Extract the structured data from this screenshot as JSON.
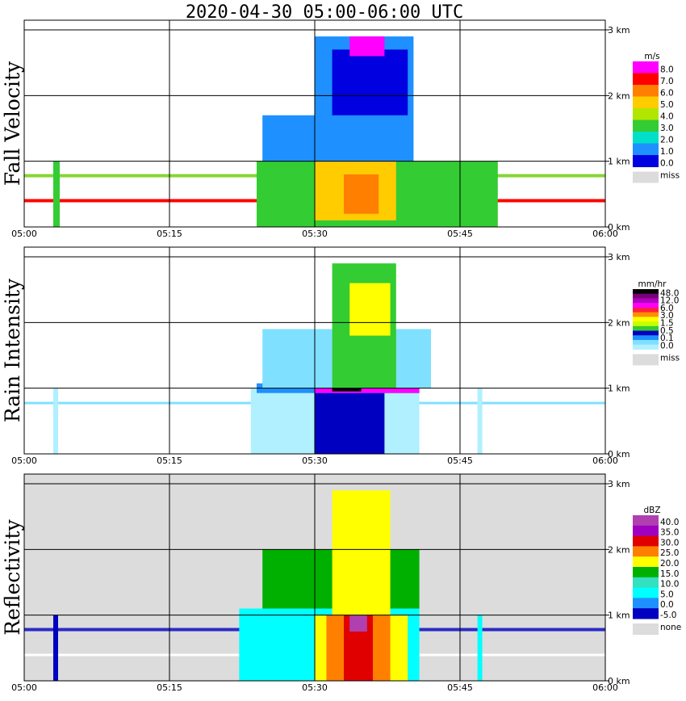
{
  "title": "2020-04-30   05:00-06:00 UTC",
  "chart_data": [
    {
      "type": "heatmap",
      "ylabel": "Fall Velocity",
      "x_ticks": [
        "05:00",
        "05:15",
        "05:30",
        "05:45",
        "06:00"
      ],
      "x_range": [
        "05:00",
        "06:00"
      ],
      "y_ticks": [
        "0 km",
        "1 km",
        "2 km",
        "3 km"
      ],
      "y_range_km": [
        0,
        3.1
      ],
      "grid": true,
      "legend": {
        "unit": "m/s",
        "levels": [
          "8.0",
          "7.0",
          "6.0",
          "5.0",
          "4.0",
          "3.0",
          "2.0",
          "1.0",
          "0.0"
        ],
        "colors": [
          "#ff00ff",
          "#ff0000",
          "#ff7f00",
          "#ffcc00",
          "#b2e600",
          "#33cc33",
          "#00e0c8",
          "#1e90ff",
          "#0000e0"
        ],
        "missing_label": "miss",
        "missing_color": "#dcdcdc"
      }
    },
    {
      "type": "heatmap",
      "ylabel": "Rain Intensity",
      "x_ticks": [
        "05:00",
        "05:15",
        "05:30",
        "05:45",
        "06:00"
      ],
      "x_range": [
        "05:00",
        "06:00"
      ],
      "y_ticks": [
        "0 km",
        "1 km",
        "2 km",
        "3 km"
      ],
      "y_range_km": [
        0,
        3.1
      ],
      "grid": true,
      "legend": {
        "unit": "mm/hr",
        "levels": [
          "48.0",
          "12.0",
          "6.0",
          "3.0",
          "1.5",
          "0.5",
          "0.1",
          "0.0"
        ],
        "colors": [
          "#000000",
          "#7a007a",
          "#b000c0",
          "#ff00ff",
          "#ff2040",
          "#ff9000",
          "#ffff00",
          "#c8ff00",
          "#33cc33",
          "#0000c0",
          "#1e90ff",
          "#80e0ff",
          "#b0f0ff"
        ],
        "missing_label": "miss",
        "missing_color": "#dcdcdc"
      }
    },
    {
      "type": "heatmap",
      "ylabel": "Reflectivity",
      "x_ticks": [
        "05:00",
        "05:15",
        "05:30",
        "05:45",
        "06:00"
      ],
      "x_range": [
        "05:00",
        "06:00"
      ],
      "y_ticks": [
        "0 km",
        "1 km",
        "2 km",
        "3 km"
      ],
      "y_range_km": [
        0,
        3.1
      ],
      "grid": true,
      "legend": {
        "unit": "dBZ",
        "levels": [
          "40.0",
          "35.0",
          "30.0",
          "25.0",
          "20.0",
          "15.0",
          "10.0",
          "5.0",
          "0.0",
          "-5.0"
        ],
        "colors": [
          "#b040b0",
          "#a000c0",
          "#e00000",
          "#ff7f00",
          "#ffff00",
          "#00b000",
          "#33e0c0",
          "#00ffff",
          "#1e90ff",
          "#0000c0"
        ],
        "missing_label": "none",
        "missing_color": "#dcdcdc"
      }
    }
  ]
}
